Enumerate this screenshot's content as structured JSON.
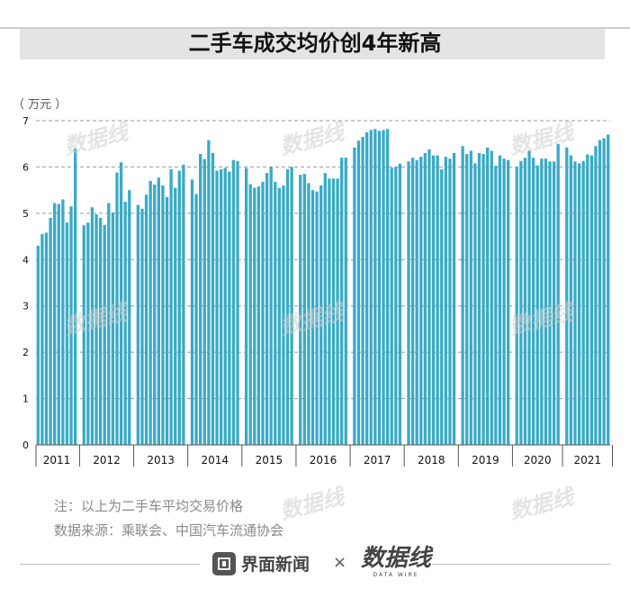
{
  "header": {
    "title": "二手车成交均价创4年新高",
    "unit": "（ 万元 ）"
  },
  "notes": {
    "note": "注：以上为二手车平均交易价格",
    "source": "数据来源：乘联会、中国汽车流通协会"
  },
  "footer": {
    "publisher": "界面新闻",
    "separator": "×",
    "brand": "数据线",
    "brand_en": "DATA WIRE"
  },
  "watermark": "数据线",
  "colors": {
    "bar": "#3aaac6",
    "grid": "#9a9a9a",
    "axis": "#555555",
    "text": "#111111"
  },
  "chart_data": {
    "type": "bar",
    "title": "二手车成交均价创4年新高",
    "ylabel": "万元",
    "xlabel": "",
    "ylim": [
      0,
      7
    ],
    "yticks": [
      0,
      1,
      2,
      3,
      4,
      5,
      6,
      7
    ],
    "grid": true,
    "years": [
      {
        "label": "2011",
        "values": [
          4.3,
          4.55,
          4.58,
          4.9,
          5.22,
          5.2,
          5.3,
          4.8,
          5.15,
          6.4
        ]
      },
      {
        "label": "2012",
        "values": [
          4.74,
          4.8,
          5.13,
          4.98,
          4.9,
          4.75,
          5.22,
          5.02,
          5.88,
          6.1,
          5.25,
          5.5
        ]
      },
      {
        "label": "2013",
        "values": [
          5.18,
          5.1,
          5.4,
          5.7,
          5.62,
          5.77,
          5.6,
          5.35,
          5.95,
          5.55,
          5.92,
          6.05
        ]
      },
      {
        "label": "2014",
        "values": [
          5.73,
          5.42,
          6.28,
          6.17,
          6.58,
          6.3,
          5.92,
          5.95,
          5.98,
          5.9,
          6.15,
          6.13
        ]
      },
      {
        "label": "2015",
        "values": [
          5.98,
          5.63,
          5.55,
          5.58,
          5.68,
          5.87,
          6.0,
          5.68,
          5.55,
          5.6,
          5.95,
          6.0
        ]
      },
      {
        "label": "2016",
        "values": [
          5.83,
          5.85,
          5.65,
          5.5,
          5.47,
          5.6,
          5.87,
          5.75,
          5.75,
          5.75,
          6.2,
          6.2
        ]
      },
      {
        "label": "2017",
        "values": [
          6.42,
          6.57,
          6.65,
          6.75,
          6.8,
          6.82,
          6.78,
          6.8,
          6.82,
          5.98,
          6.0,
          6.07
        ]
      },
      {
        "label": "2018",
        "values": [
          6.12,
          6.2,
          6.15,
          6.22,
          6.3,
          6.38,
          6.25,
          6.25,
          5.95,
          6.22,
          6.18,
          6.3
        ]
      },
      {
        "label": "2019",
        "values": [
          6.45,
          6.28,
          6.35,
          6.08,
          6.3,
          6.28,
          6.42,
          6.35,
          6.03,
          6.25,
          6.18,
          6.15
        ]
      },
      {
        "label": "2020",
        "values": [
          6.0,
          6.13,
          6.2,
          6.35,
          6.2,
          6.03,
          6.18,
          6.18,
          6.12,
          6.12,
          6.5
        ]
      },
      {
        "label": "2021",
        "values": [
          6.42,
          6.25,
          6.12,
          6.08,
          6.13,
          6.27,
          6.25,
          6.45,
          6.58,
          6.62,
          6.7
        ]
      }
    ]
  }
}
